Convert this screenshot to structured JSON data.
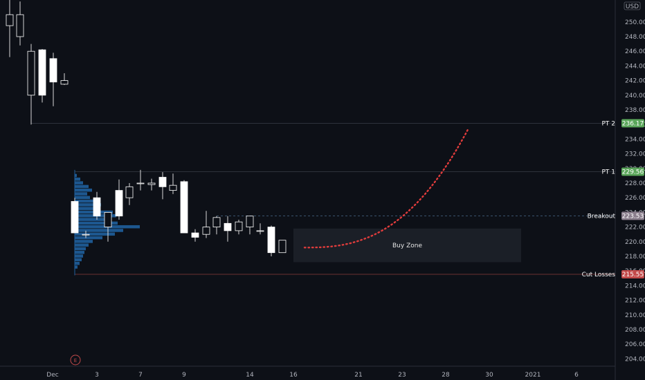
{
  "currency": "USD",
  "colors": {
    "background": "#0d1017",
    "candle_up": "#ffffff",
    "candle_down": "#ffffff",
    "wick": "#d9d9d9",
    "volume_profile": "#1f5f9c",
    "pt_tag": "#5aa55a",
    "breakout_tag": "#8a7e8c",
    "cut_tag": "#c24a4a",
    "projection": "#e03c3c",
    "buy_zone": "#1b1f27"
  },
  "earnings_marker": "E",
  "chart_data": {
    "type": "candlestick",
    "ylim": [
      203,
      253
    ],
    "y_ticks": [
      204,
      206,
      208,
      210,
      212,
      214,
      216,
      218,
      220,
      222,
      224,
      226,
      228,
      230,
      232,
      234,
      236,
      238,
      240,
      242,
      244,
      246,
      248,
      250
    ],
    "x_labels": [
      "Dec",
      "3",
      "7",
      "9",
      "14",
      "16",
      "21",
      "23",
      "28",
      "30",
      "2021",
      "6"
    ],
    "candles": [
      {
        "o": 249.5,
        "h": 253.5,
        "l": 245.2,
        "c": 251.0
      },
      {
        "o": 248.0,
        "h": 252.8,
        "l": 246.8,
        "c": 251.0
      },
      {
        "o": 240.0,
        "h": 247.0,
        "l": 236.0,
        "c": 246.0
      },
      {
        "o": 246.2,
        "h": 246.3,
        "l": 239.0,
        "c": 240.0
      },
      {
        "o": 245.0,
        "h": 245.8,
        "l": 238.5,
        "c": 241.8
      },
      {
        "o": 241.5,
        "h": 243.0,
        "l": 241.4,
        "c": 242.0
      },
      {
        "o": 225.5,
        "h": 226.0,
        "l": 221.2,
        "c": 221.2
      },
      {
        "o": 221.0,
        "h": 221.5,
        "l": 220.5,
        "c": 221.0
      },
      {
        "o": 226.0,
        "h": 226.8,
        "l": 223.0,
        "c": 223.5
      },
      {
        "o": 222.0,
        "h": 224.0,
        "l": 220.0,
        "c": 224.0
      },
      {
        "o": 227.0,
        "h": 228.5,
        "l": 223.0,
        "c": 223.5
      },
      {
        "o": 226.0,
        "h": 228.0,
        "l": 225.0,
        "c": 227.5
      },
      {
        "o": 228.0,
        "h": 229.8,
        "l": 227.0,
        "c": 228.0
      },
      {
        "o": 227.8,
        "h": 228.6,
        "l": 227.0,
        "c": 228.0
      },
      {
        "o": 228.8,
        "h": 229.5,
        "l": 225.8,
        "c": 227.5
      },
      {
        "o": 227.0,
        "h": 229.3,
        "l": 226.5,
        "c": 227.7
      },
      {
        "o": 228.2,
        "h": 228.4,
        "l": 221.2,
        "c": 221.2
      },
      {
        "o": 221.2,
        "h": 221.7,
        "l": 220.0,
        "c": 220.6
      },
      {
        "o": 221.0,
        "h": 224.2,
        "l": 220.5,
        "c": 222.0
      },
      {
        "o": 222.0,
        "h": 223.5,
        "l": 221.0,
        "c": 223.3
      },
      {
        "o": 222.5,
        "h": 223.5,
        "l": 220.0,
        "c": 221.5
      },
      {
        "o": 221.5,
        "h": 223.0,
        "l": 221.0,
        "c": 222.7
      },
      {
        "o": 222.0,
        "h": 223.5,
        "l": 221.0,
        "c": 223.5
      },
      {
        "o": 221.5,
        "h": 222.5,
        "l": 221.0,
        "c": 221.5
      },
      {
        "o": 222.0,
        "h": 222.2,
        "l": 218.0,
        "c": 218.5
      },
      {
        "o": 218.5,
        "h": 220.2,
        "l": 218.5,
        "c": 220.2
      }
    ],
    "levels": [
      {
        "label": "PT 2",
        "price": "236.17",
        "value": 236.17,
        "style": "solid"
      },
      {
        "label": "PT 1",
        "price": "229.56",
        "value": 229.56,
        "style": "solid"
      },
      {
        "label": "Breakout",
        "price": "223.53",
        "value": 223.53,
        "style": "dashed"
      },
      {
        "label": "Cut Losses",
        "price": "215.55",
        "value": 215.55,
        "style": "solid"
      }
    ],
    "buy_zone": {
      "label": "Buy Zone",
      "top": 221.8,
      "bottom": 217.2
    },
    "projection": {
      "from": 219.2,
      "to": 235.3
    },
    "volume_profile": [
      {
        "price": 229.0,
        "value": 3
      },
      {
        "price": 228.5,
        "value": 8
      },
      {
        "price": 228.0,
        "value": 12
      },
      {
        "price": 227.5,
        "value": 20
      },
      {
        "price": 227.0,
        "value": 25
      },
      {
        "price": 226.5,
        "value": 18
      },
      {
        "price": 226.0,
        "value": 22
      },
      {
        "price": 225.5,
        "value": 30
      },
      {
        "price": 225.0,
        "value": 38
      },
      {
        "price": 224.5,
        "value": 35
      },
      {
        "price": 224.0,
        "value": 55
      },
      {
        "price": 223.5,
        "value": 60
      },
      {
        "price": 223.0,
        "value": 48
      },
      {
        "price": 222.5,
        "value": 62
      },
      {
        "price": 222.0,
        "value": 94
      },
      {
        "price": 221.5,
        "value": 70
      },
      {
        "price": 221.0,
        "value": 58
      },
      {
        "price": 220.5,
        "value": 40
      },
      {
        "price": 220.0,
        "value": 26
      },
      {
        "price": 219.5,
        "value": 20
      },
      {
        "price": 219.0,
        "value": 16
      },
      {
        "price": 218.5,
        "value": 14
      },
      {
        "price": 218.0,
        "value": 12
      },
      {
        "price": 217.5,
        "value": 10
      },
      {
        "price": 217.0,
        "value": 7
      },
      {
        "price": 216.5,
        "value": 4
      }
    ]
  }
}
